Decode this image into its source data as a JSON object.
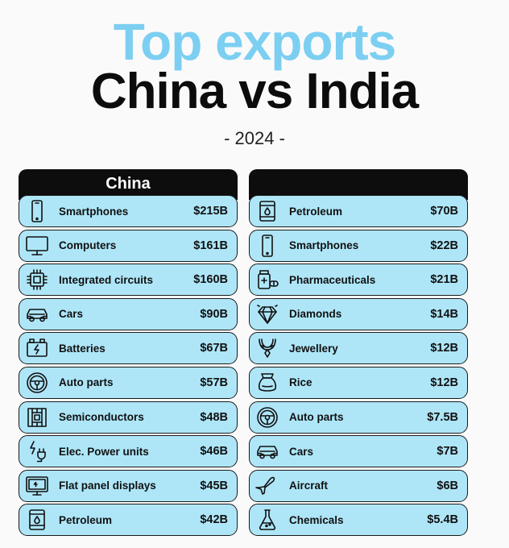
{
  "title_line1": "Top exports",
  "title_line2": "China vs India",
  "year": "- 2024 -",
  "chart_data": {
    "type": "table",
    "columns": [
      {
        "name": "China",
        "rows": [
          {
            "label": "Smartphones",
            "value": "$215B",
            "icon": "smartphone-icon"
          },
          {
            "label": "Computers",
            "value": "$161B",
            "icon": "monitor-icon"
          },
          {
            "label": "Integrated circuits",
            "value": "$160B",
            "icon": "chip-icon"
          },
          {
            "label": "Cars",
            "value": "$90B",
            "icon": "car-icon"
          },
          {
            "label": "Batteries",
            "value": "$67B",
            "icon": "battery-icon"
          },
          {
            "label": "Auto parts",
            "value": "$57B",
            "icon": "steering-wheel-icon"
          },
          {
            "label": "Semiconductors",
            "value": "$48B",
            "icon": "semiconductor-icon"
          },
          {
            "label": "Elec. Power units",
            "value": "$46B",
            "icon": "power-plug-icon"
          },
          {
            "label": "Flat panel displays",
            "value": "$45B",
            "icon": "display-icon"
          },
          {
            "label": "Petroleum",
            "value": "$42B",
            "icon": "oil-barrel-icon"
          }
        ]
      },
      {
        "name": "",
        "rows": [
          {
            "label": "Petroleum",
            "value": "$70B",
            "icon": "oil-barrel-icon"
          },
          {
            "label": "Smartphones",
            "value": "$22B",
            "icon": "smartphone-icon"
          },
          {
            "label": "Pharmaceuticals",
            "value": "$21B",
            "icon": "pills-icon"
          },
          {
            "label": "Diamonds",
            "value": "$14B",
            "icon": "diamond-icon"
          },
          {
            "label": "Jewellery",
            "value": "$12B",
            "icon": "necklace-icon"
          },
          {
            "label": "Rice",
            "value": "$12B",
            "icon": "rice-sack-icon"
          },
          {
            "label": "Auto parts",
            "value": "$7.5B",
            "icon": "steering-wheel-icon"
          },
          {
            "label": "Cars",
            "value": "$7B",
            "icon": "car-icon"
          },
          {
            "label": "Aircraft",
            "value": "$6B",
            "icon": "airplane-icon"
          },
          {
            "label": "Chemicals",
            "value": "$5.4B",
            "icon": "flask-icon"
          }
        ]
      }
    ]
  }
}
